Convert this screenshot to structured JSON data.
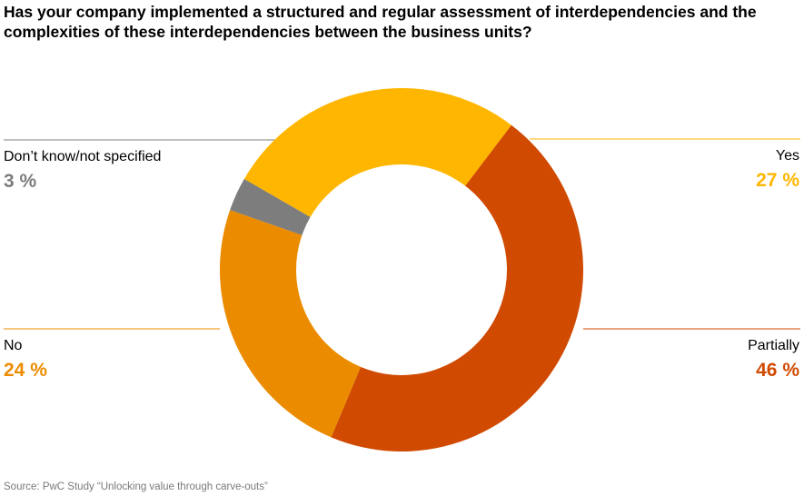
{
  "title": {
    "line1": "Has your company implemented a structured and regular assessment of interdependencies and the",
    "line2": "complexities of these interdependencies between the business units?"
  },
  "source": "Source: PwC Study “Unlocking value through carve-outs”",
  "chart_data": {
    "type": "pie",
    "donut": true,
    "title": "Has your company implemented a structured and regular assessment of interdependencies and the complexities of these interdependencies between the business units?",
    "slices": [
      {
        "name": "Yes",
        "value": 27,
        "label": "27 %",
        "color": "#FFB600"
      },
      {
        "name": "Partially",
        "value": 46,
        "label": "46 %",
        "color": "#D04A02"
      },
      {
        "name": "No",
        "value": 24,
        "label": "24 %",
        "color": "#EB8C00"
      },
      {
        "name": "Don’t know/not specified",
        "value": 3,
        "label": "3 %",
        "color": "#7D7D7D"
      }
    ]
  }
}
